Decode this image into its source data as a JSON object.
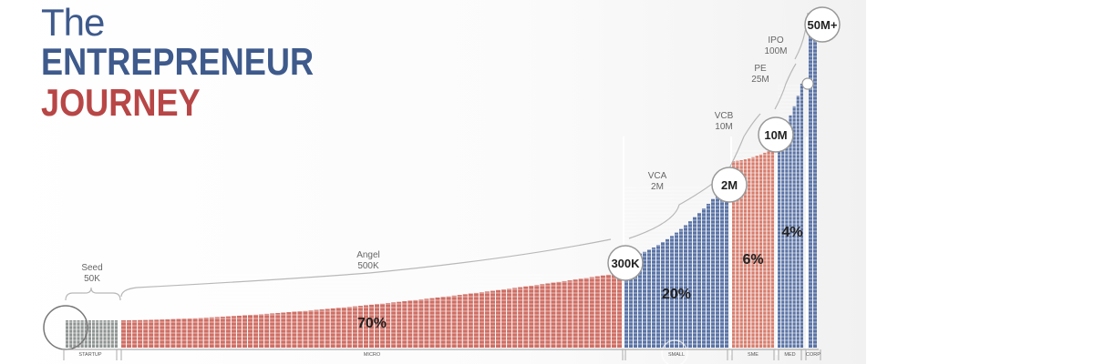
{
  "header": {
    "line1": "The",
    "line2": "ENTREPRENEUR",
    "line3": "JOURNEY"
  },
  "colors": {
    "startup": "#8e9491",
    "micro": "#cf6e64",
    "small": "#5a73a6",
    "sme": "#d87c6c",
    "med": "#5a73a6",
    "corp": "#5a73a6",
    "title_blue": "#3e5a8c",
    "title_red": "#b84646"
  },
  "chart_data": {
    "type": "bar",
    "title": "The ENTREPRENEUR JOURNEY",
    "grid": false,
    "segments": [
      {
        "category": "STARTUP",
        "percent": ""
      },
      {
        "category": "MICRO",
        "percent": "70%"
      },
      {
        "category": "SMALL",
        "percent": "20%"
      },
      {
        "category": "SME",
        "percent": "6%"
      },
      {
        "category": "MED",
        "percent": "4%"
      },
      {
        "category": "CORP",
        "percent": ""
      }
    ],
    "milestones": [
      {
        "value": "300K"
      },
      {
        "value": "2M"
      },
      {
        "value": "10M"
      },
      {
        "value": "50M+"
      }
    ],
    "funding_stages": [
      {
        "name": "Seed",
        "amount": "50K"
      },
      {
        "name": "Angel",
        "amount": "500K"
      },
      {
        "name": "VCA",
        "amount": "2M"
      },
      {
        "name": "VCB",
        "amount": "10M"
      },
      {
        "name": "PE",
        "amount": "25M"
      },
      {
        "name": "IPO",
        "amount": "100M"
      }
    ]
  }
}
